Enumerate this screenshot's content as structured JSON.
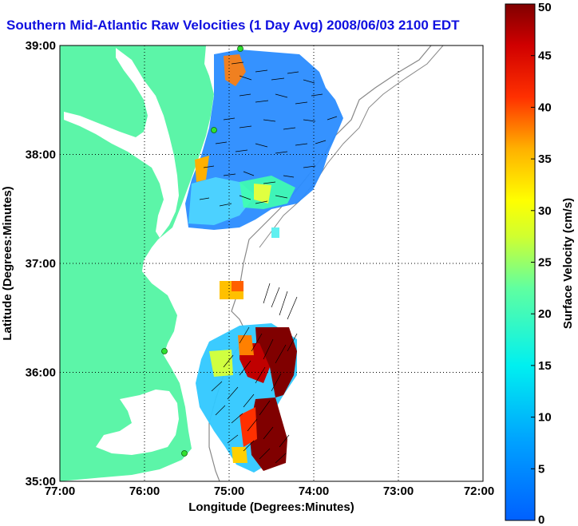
{
  "title": "Southern Mid-Atlantic Raw Velocities (1 Day Avg) 2008/06/03 2100 EDT",
  "map": {
    "xlabel": "Longitude (Degrees:Minutes)",
    "ylabel": "Latitude (Degrees:Minutes)",
    "x_ticks": [
      "77:00",
      "76:00",
      "75:00",
      "74:00",
      "73:00",
      "72:00"
    ],
    "y_ticks": [
      "39:00",
      "38:00",
      "37:00",
      "36:00",
      "35:00"
    ],
    "land_color": "#5cf5a8",
    "grid": "dotted"
  },
  "colorbar": {
    "label": "Surface Velocity (cm/s)",
    "ticks": [
      "50",
      "45",
      "40",
      "35",
      "30",
      "25",
      "20",
      "15",
      "10",
      "5",
      "0"
    ],
    "colormap": "jet",
    "min": 0,
    "max": 50
  }
}
